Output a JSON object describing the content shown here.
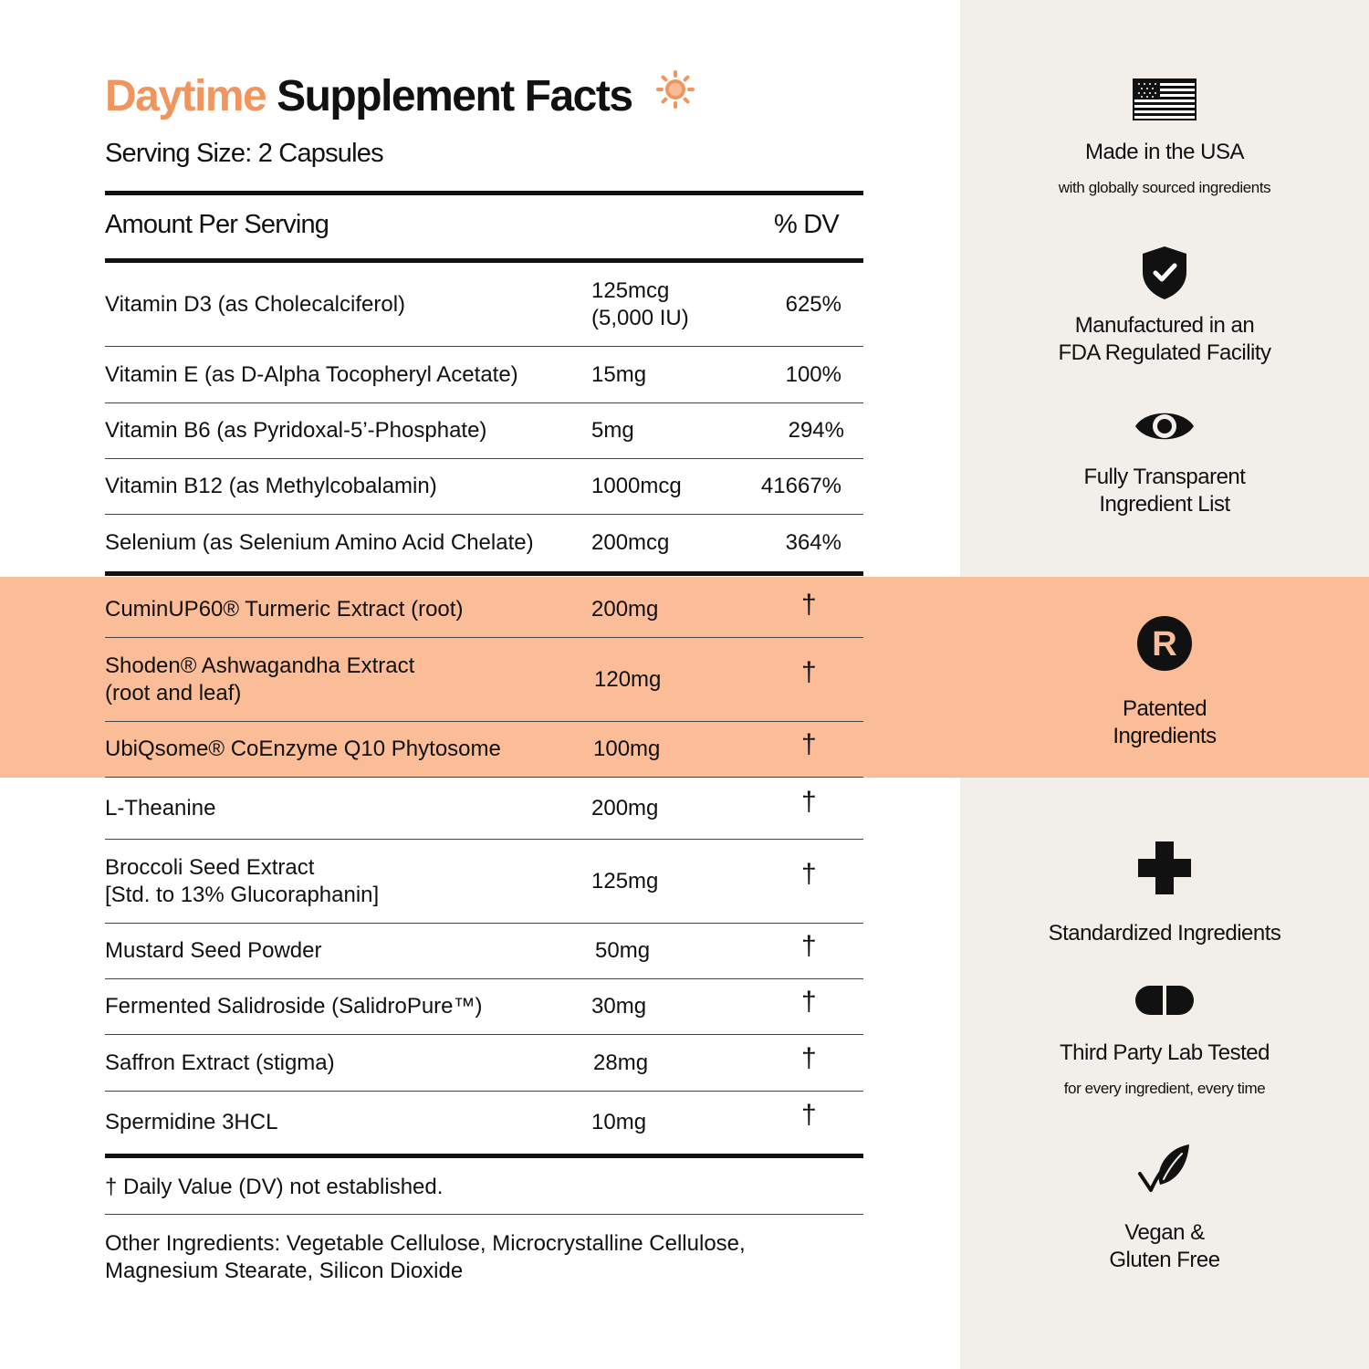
{
  "title": {
    "accent": "Daytime",
    "main": "Supplement Facts"
  },
  "serving_size": "Serving Size: 2 Capsules",
  "header": {
    "amount": "Amount Per Serving",
    "dv": "% DV"
  },
  "rows": [
    {
      "name": "Vitamin D3 (as Cholecalciferol)",
      "amount": "125mcg",
      "amount_sub": "(5,000 IU)",
      "dv": "625%"
    },
    {
      "name": "Vitamin E (as D-Alpha Tocopheryl Acetate)",
      "amount": "15mg",
      "dv": "100%"
    },
    {
      "name": "Vitamin B6 (as Pyridoxal-5’-Phosphate)",
      "amount": "5mg",
      "dv": "294%"
    },
    {
      "name": "Vitamin B12 (as Methylcobalamin)",
      "amount": "1000mcg",
      "dv": "41667%"
    },
    {
      "name": "Selenium (as Selenium Amino Acid Chelate)",
      "amount": "200mcg",
      "dv": "364%"
    },
    {
      "name": "CuminUP60® Turmeric Extract (root)",
      "amount": "200mg",
      "dv": "†"
    },
    {
      "name": "Shoden® Ashwagandha Extract",
      "name_sub": "(root and leaf)",
      "amount": "120mg",
      "dv": "†"
    },
    {
      "name": "UbiQsome® CoEnzyme Q10 Phytosome",
      "amount": "100mg",
      "dv": "†"
    },
    {
      "name": "L-Theanine",
      "amount": "200mg",
      "dv": "†"
    },
    {
      "name": "Broccoli Seed Extract",
      "name_sub": "[Std. to 13% Glucoraphanin]",
      "amount": "125mg",
      "dv": "†"
    },
    {
      "name": "Mustard Seed Powder",
      "amount": "50mg",
      "dv": "†"
    },
    {
      "name": "Fermented Salidroside (SalidroPure™)",
      "amount": "30mg",
      "dv": "†"
    },
    {
      "name": "Saffron Extract (stigma)",
      "amount": "28mg",
      "dv": "†"
    },
    {
      "name": "Spermidine 3HCL",
      "amount": "10mg",
      "dv": "†"
    }
  ],
  "footnote": "† Daily Value (DV) not established.",
  "other_ingredients": {
    "line1": "Other Ingredients: Vegetable Cellulose, Microcrystalline Cellulose,",
    "line2": "Magnesium Stearate, Silicon Dioxide"
  },
  "features": [
    {
      "icon": "usa-flag-icon",
      "title": "Made in the USA",
      "sub": "with globally sourced ingredients"
    },
    {
      "icon": "shield-check-icon",
      "title1": "Manufactured in an",
      "title2": "FDA Regulated Facility"
    },
    {
      "icon": "eye-icon",
      "title1": "Fully Transparent",
      "title2": "Ingredient List"
    },
    {
      "icon": "registered-icon",
      "title1": "Patented",
      "title2": "Ingredients"
    },
    {
      "icon": "plus-icon",
      "title": "Standardized Ingredients"
    },
    {
      "icon": "capsule-icon",
      "title": "Third Party Lab Tested",
      "sub": "for every ingredient, every time"
    },
    {
      "icon": "leaf-check-icon",
      "title1": "Vegan &",
      "title2": "Gluten Free"
    }
  ],
  "colors": {
    "accent": "#f0955e",
    "highlight_band": "#fbbd98",
    "sidebar": "#f2efea",
    "text": "#111111"
  }
}
